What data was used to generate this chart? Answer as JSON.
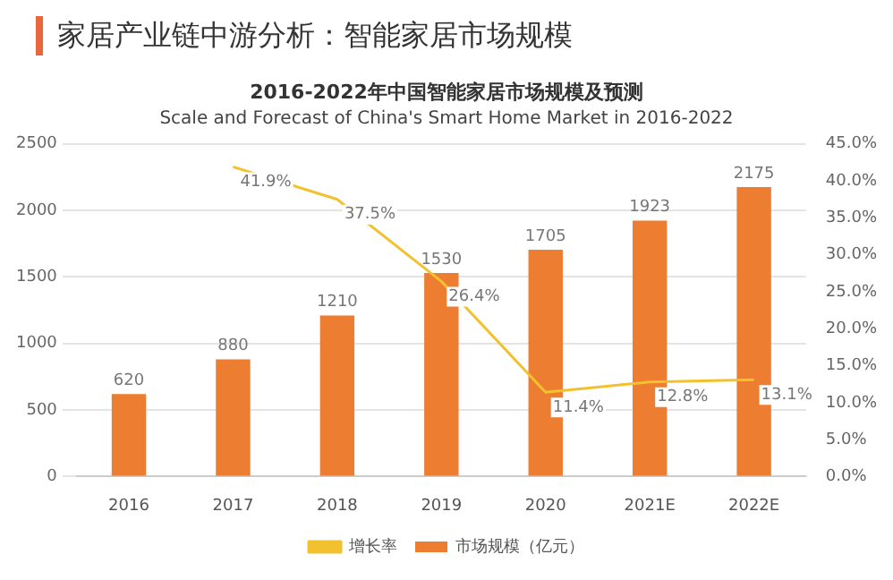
{
  "chart_data": {
    "type": "bar",
    "title": "家居产业链中游分析：智能家居市场规模",
    "subtitle": "2016-2022年中国智能家居市场规模及预测",
    "annotations": [
      "Scale and Forecast of China's Smart Home Market in 2016-2022"
    ],
    "categories": [
      "2016",
      "2017",
      "2018",
      "2019",
      "2020",
      "2021E",
      "2022E"
    ],
    "series": [
      {
        "name": "市场规模（亿元）",
        "color": "#ed7d31",
        "values": [
          620,
          880,
          1210,
          1530,
          1705,
          1923,
          2175
        ],
        "value_labels": [
          "620",
          "880",
          "1210",
          "1530",
          "1705",
          "1923",
          "2175"
        ]
      },
      {
        "name": "增长率",
        "type": "line",
        "axis": "y2",
        "color": "#f2c12e",
        "values": [
          null,
          41.9,
          37.5,
          26.4,
          11.4,
          12.8,
          13.1
        ],
        "value_labels": [
          null,
          "41.9%",
          "37.5%",
          "26.4%",
          "11.4%",
          "12.8%",
          "13.1%"
        ]
      }
    ],
    "ylim": [
      0,
      2500
    ],
    "yticks": [
      0,
      500,
      1000,
      1500,
      2000,
      2500
    ],
    "y2lim": [
      0,
      45
    ],
    "y2ticks": [
      {
        "value": 0,
        "label": "0.0%"
      },
      {
        "value": 5,
        "label": "5.0%"
      },
      {
        "value": 10,
        "label": "10.0%"
      },
      {
        "value": 15,
        "label": "15.0%"
      },
      {
        "value": 20,
        "label": "20.0%"
      },
      {
        "value": 25,
        "label": "25.0%"
      },
      {
        "value": 30,
        "label": "30.0%"
      },
      {
        "value": 35,
        "label": "35.0%"
      },
      {
        "value": 40,
        "label": "40.0%"
      },
      {
        "value": 45,
        "label": "45.0%"
      }
    ],
    "grid": "y",
    "legend": "bottom",
    "marker": "none",
    "line_style": "solid"
  }
}
